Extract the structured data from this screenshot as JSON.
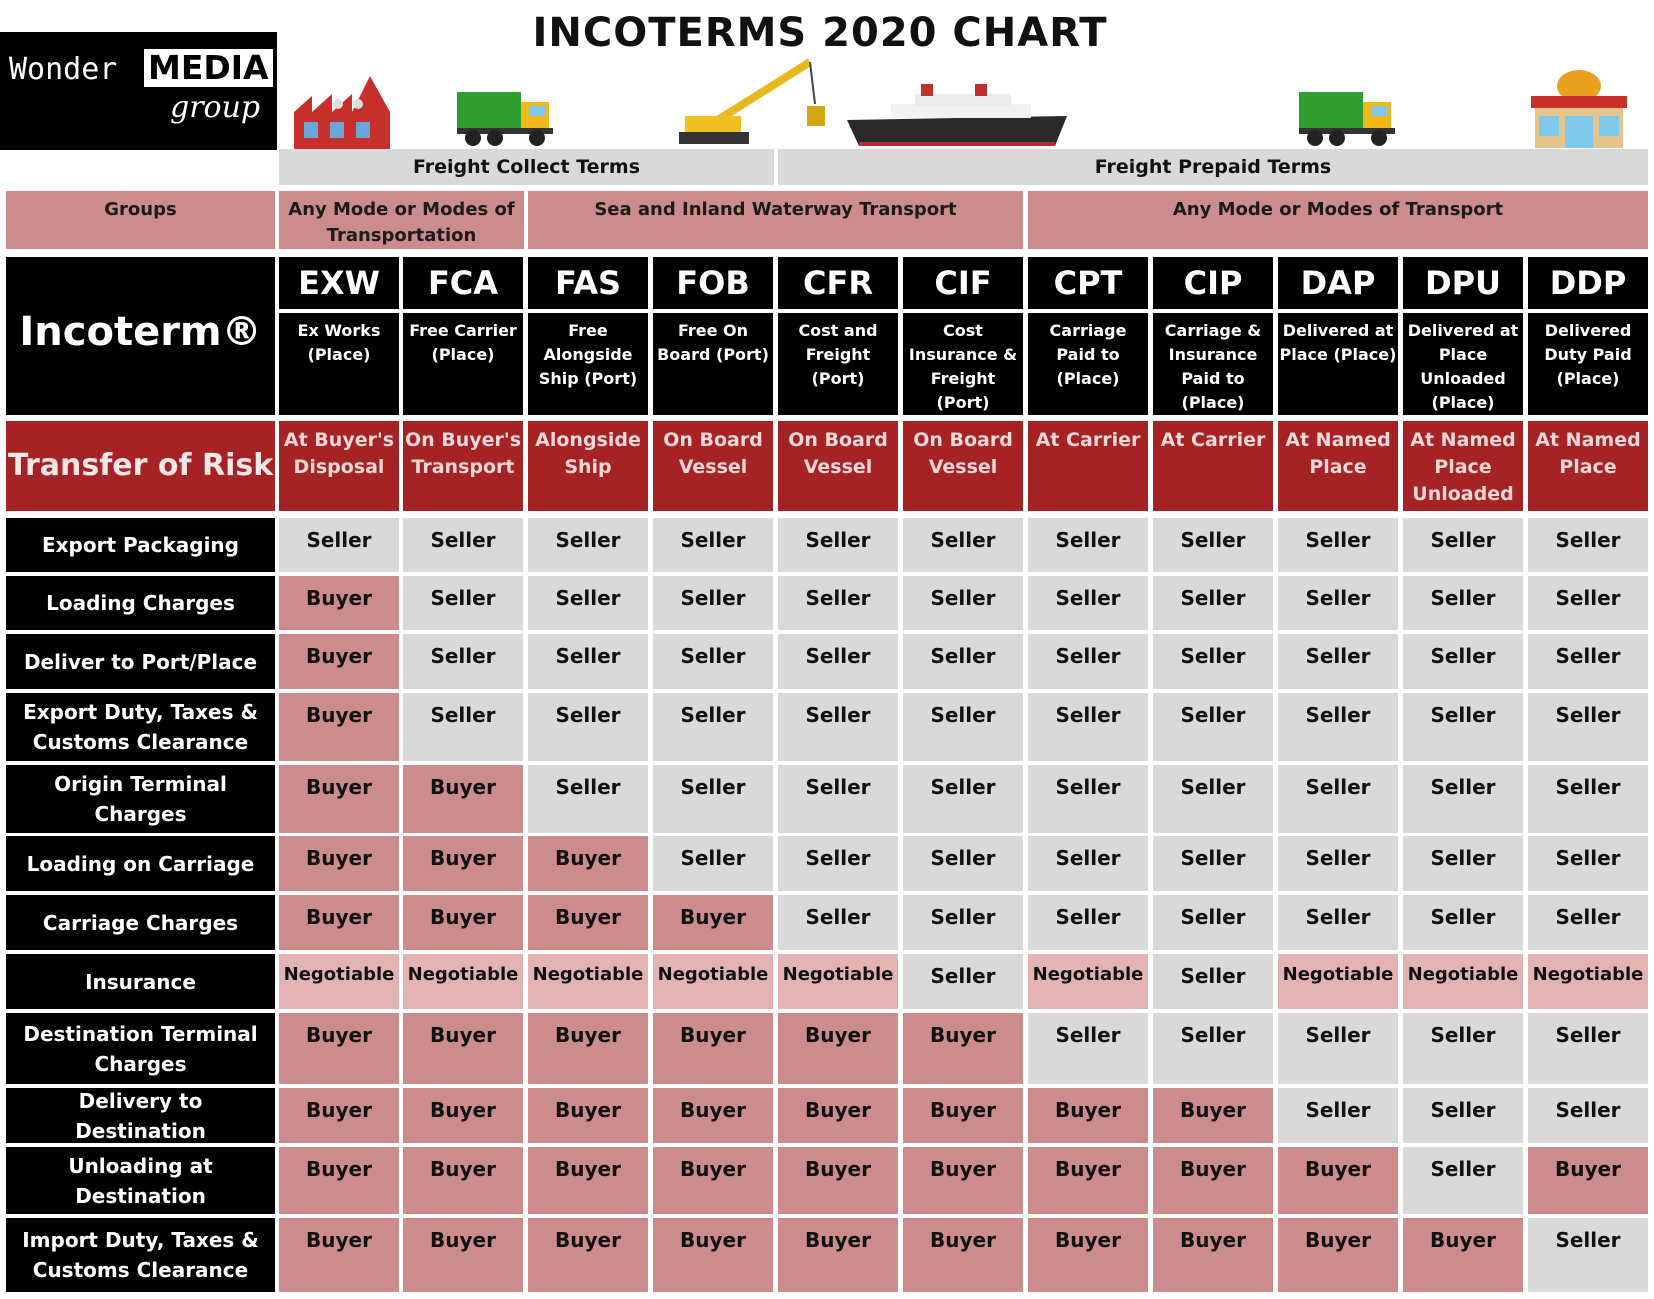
{
  "title": "INCOTERMS 2020 CHART",
  "logo": {
    "word1": "Wonder",
    "word2": "MEDIA",
    "word3": "group"
  },
  "freight": {
    "collect": "Freight Collect Terms",
    "prepaid": "Freight Prepaid Terms"
  },
  "groups": {
    "label": "Groups",
    "any1": "Any Mode or Modes of Transportation",
    "sea": "Sea and Inland Waterway Transport",
    "any2": "Any Mode or Modes of Transport"
  },
  "incoterm_label": "Incoterm®",
  "risk_label": "Transfer of Risk",
  "terms": [
    {
      "code": "EXW",
      "desc": "Ex Works (Place)",
      "risk": "At Buyer's Disposal"
    },
    {
      "code": "FCA",
      "desc": "Free Carrier (Place)",
      "risk": "On Buyer's Transport"
    },
    {
      "code": "FAS",
      "desc": "Free Alongside Ship (Port)",
      "risk": "Alongside Ship"
    },
    {
      "code": "FOB",
      "desc": "Free On Board (Port)",
      "risk": "On Board Vessel"
    },
    {
      "code": "CFR",
      "desc": "Cost and Freight (Port)",
      "risk": "On Board Vessel"
    },
    {
      "code": "CIF",
      "desc": "Cost Insurance & Freight (Port)",
      "risk": "On Board Vessel"
    },
    {
      "code": "CPT",
      "desc": "Carriage Paid to (Place)",
      "risk": "At Carrier"
    },
    {
      "code": "CIP",
      "desc": "Carriage & Insurance Paid to (Place)",
      "risk": "At Carrier"
    },
    {
      "code": "DAP",
      "desc": "Delivered at Place (Place)",
      "risk": "At Named Place"
    },
    {
      "code": "DPU",
      "desc": "Delivered at Place Unloaded (Place)",
      "risk": "At Named Place Unloaded"
    },
    {
      "code": "DDP",
      "desc": "Delivered Duty Paid (Place)",
      "risk": "At Named Place"
    }
  ],
  "rows": [
    {
      "label": "Export Packaging",
      "values": [
        "Seller",
        "Seller",
        "Seller",
        "Seller",
        "Seller",
        "Seller",
        "Seller",
        "Seller",
        "Seller",
        "Seller",
        "Seller"
      ]
    },
    {
      "label": "Loading Charges",
      "values": [
        "Buyer",
        "Seller",
        "Seller",
        "Seller",
        "Seller",
        "Seller",
        "Seller",
        "Seller",
        "Seller",
        "Seller",
        "Seller"
      ]
    },
    {
      "label": "Deliver to Port/Place",
      "values": [
        "Buyer",
        "Seller",
        "Seller",
        "Seller",
        "Seller",
        "Seller",
        "Seller",
        "Seller",
        "Seller",
        "Seller",
        "Seller"
      ]
    },
    {
      "label": "Export Duty, Taxes & Customs Clearance",
      "values": [
        "Buyer",
        "Seller",
        "Seller",
        "Seller",
        "Seller",
        "Seller",
        "Seller",
        "Seller",
        "Seller",
        "Seller",
        "Seller"
      ]
    },
    {
      "label": "Origin Terminal Charges",
      "values": [
        "Buyer",
        "Buyer",
        "Seller",
        "Seller",
        "Seller",
        "Seller",
        "Seller",
        "Seller",
        "Seller",
        "Seller",
        "Seller"
      ]
    },
    {
      "label": "Loading on Carriage",
      "values": [
        "Buyer",
        "Buyer",
        "Buyer",
        "Seller",
        "Seller",
        "Seller",
        "Seller",
        "Seller",
        "Seller",
        "Seller",
        "Seller"
      ]
    },
    {
      "label": "Carriage Charges",
      "values": [
        "Buyer",
        "Buyer",
        "Buyer",
        "Buyer",
        "Seller",
        "Seller",
        "Seller",
        "Seller",
        "Seller",
        "Seller",
        "Seller"
      ]
    },
    {
      "label": "Insurance",
      "values": [
        "Negotiable",
        "Negotiable",
        "Negotiable",
        "Negotiable",
        "Negotiable",
        "Seller",
        "Negotiable",
        "Seller",
        "Negotiable",
        "Negotiable",
        "Negotiable"
      ]
    },
    {
      "label": "Destination Terminal Charges",
      "values": [
        "Buyer",
        "Buyer",
        "Buyer",
        "Buyer",
        "Buyer",
        "Buyer",
        "Seller",
        "Seller",
        "Seller",
        "Seller",
        "Seller"
      ]
    },
    {
      "label": "Delivery to Destination",
      "values": [
        "Buyer",
        "Buyer",
        "Buyer",
        "Buyer",
        "Buyer",
        "Buyer",
        "Buyer",
        "Buyer",
        "Seller",
        "Seller",
        "Seller"
      ]
    },
    {
      "label": "Unloading at Destination",
      "values": [
        "Buyer",
        "Buyer",
        "Buyer",
        "Buyer",
        "Buyer",
        "Buyer",
        "Buyer",
        "Buyer",
        "Buyer",
        "Seller",
        "Buyer"
      ]
    },
    {
      "label": "Import Duty, Taxes & Customs Clearance",
      "values": [
        "Buyer",
        "Buyer",
        "Buyer",
        "Buyer",
        "Buyer",
        "Buyer",
        "Buyer",
        "Buyer",
        "Buyer",
        "Buyer",
        "Seller"
      ]
    }
  ],
  "colors": {
    "seller": "#d9d9d9",
    "buyer": "#cc8b8c",
    "negotiable": "#e3b3b4",
    "risk": "#a52325",
    "groups": "#cc8b8c",
    "header": "#000000"
  },
  "icons": [
    "factory-icon",
    "truck-icon",
    "crane-icon",
    "ship-icon",
    "truck-icon",
    "store-icon"
  ]
}
